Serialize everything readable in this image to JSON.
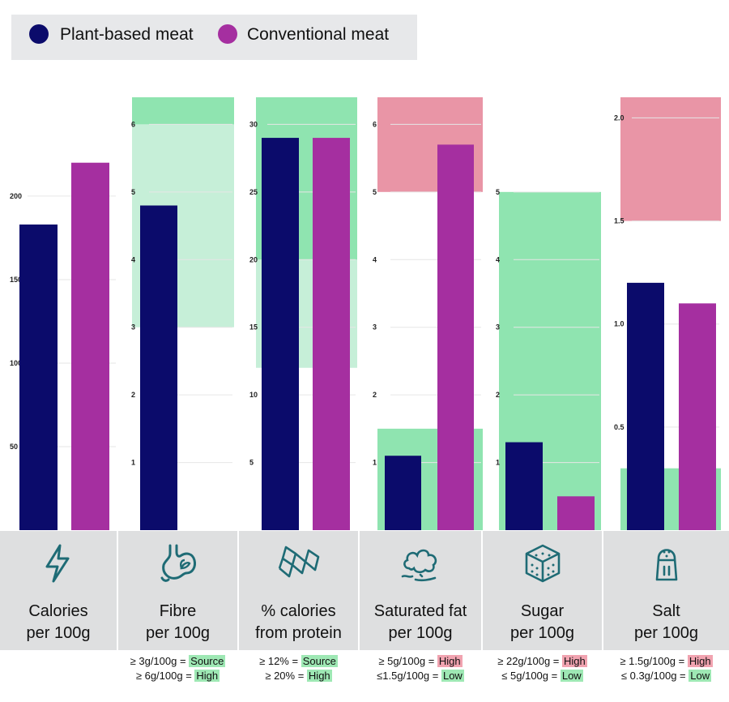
{
  "legend": {
    "plant_label": "Plant-based meat",
    "conventional_label": "Conventional meat"
  },
  "colors": {
    "plant": "#0b0b6b",
    "conventional": "#a52fa0",
    "high_band": "#e995a6",
    "low_band": "#8fe4b0",
    "source_band": "#c6efd8",
    "panel": "#dedfe0"
  },
  "categories": [
    {
      "line1": "Calories",
      "line2": "per 100g",
      "icon": "lightning-bolt-icon",
      "crit": []
    },
    {
      "line1": "Fibre",
      "line2": "per 100g",
      "icon": "stomach-icon",
      "crit": [
        {
          "pre": "≥ 3g/100g = ",
          "tag": "Source",
          "tone": "green"
        },
        {
          "pre": "≥ 6g/100g = ",
          "tag": "High",
          "tone": "green"
        }
      ]
    },
    {
      "line1": "% calories",
      "line2": "from protein",
      "icon": "protein-helix-icon",
      "crit": [
        {
          "pre": "≥ 12% = ",
          "tag": "Source",
          "tone": "green"
        },
        {
          "pre": "≥ 20% = ",
          "tag": "High",
          "tone": "green"
        }
      ]
    },
    {
      "line1": "Saturated fat",
      "line2": "per 100g",
      "icon": "fat-cloud-icon",
      "crit": [
        {
          "pre": "≥ 5g/100g = ",
          "tag": "High",
          "tone": "red"
        },
        {
          "pre": "≤1.5g/100g = ",
          "tag": "Low",
          "tone": "green"
        }
      ]
    },
    {
      "line1": "Sugar",
      "line2": "per 100g",
      "icon": "sugar-cube-icon",
      "crit": [
        {
          "pre": "≥ 22g/100g = ",
          "tag": "High",
          "tone": "red"
        },
        {
          "pre": "≤ 5g/100g = ",
          "tag": "Low",
          "tone": "green"
        }
      ]
    },
    {
      "line1": "Salt",
      "line2": "per 100g",
      "icon": "salt-shaker-icon",
      "crit": [
        {
          "pre": "≥ 1.5g/100g = ",
          "tag": "High",
          "tone": "red"
        },
        {
          "pre": "≤ 0.3g/100g = ",
          "tag": "Low",
          "tone": "green"
        }
      ]
    }
  ],
  "chart_data": [
    {
      "type": "bar",
      "title": "Calories per 100g",
      "categories": [
        "Calories per 100g"
      ],
      "series": [
        {
          "name": "Plant-based meat",
          "values": [
            183
          ]
        },
        {
          "name": "Conventional meat",
          "values": [
            220
          ]
        }
      ],
      "ylim": [
        0,
        265
      ],
      "yticks": [
        50,
        100,
        150,
        200
      ],
      "ytick_labels": [
        "50",
        "100",
        "150",
        "200"
      ],
      "bands": []
    },
    {
      "type": "bar",
      "title": "Fibre per 100g",
      "categories": [
        "Fibre per 100g"
      ],
      "series": [
        {
          "name": "Plant-based meat",
          "values": [
            4.8
          ]
        },
        {
          "name": "Conventional meat",
          "values": [
            0
          ]
        }
      ],
      "ylim": [
        0,
        6.4
      ],
      "yticks": [
        1,
        2,
        3,
        4,
        5,
        6
      ],
      "ytick_labels": [
        "1",
        "2",
        "3",
        "4",
        "5",
        "6"
      ],
      "bands": [
        {
          "from": 3,
          "to": 6,
          "kind": "source"
        },
        {
          "from": 6,
          "to": 6.4,
          "kind": "low"
        }
      ]
    },
    {
      "type": "bar",
      "title": "% calories from protein",
      "categories": [
        "% calories from protein"
      ],
      "series": [
        {
          "name": "Plant-based meat",
          "values": [
            29
          ]
        },
        {
          "name": "Conventional meat",
          "values": [
            29
          ]
        }
      ],
      "ylim": [
        0,
        32
      ],
      "yticks": [
        5,
        10,
        15,
        20,
        25,
        30
      ],
      "ytick_labels": [
        "5",
        "10",
        "15",
        "20",
        "25",
        "30"
      ],
      "bands": [
        {
          "from": 12,
          "to": 20,
          "kind": "source"
        },
        {
          "from": 20,
          "to": 32,
          "kind": "low"
        }
      ]
    },
    {
      "type": "bar",
      "title": "Saturated fat per 100g",
      "categories": [
        "Saturated fat per 100g"
      ],
      "series": [
        {
          "name": "Plant-based meat",
          "values": [
            1.1
          ]
        },
        {
          "name": "Conventional meat",
          "values": [
            5.7
          ]
        }
      ],
      "ylim": [
        0,
        6.4
      ],
      "yticks": [
        1,
        2,
        3,
        4,
        5,
        6
      ],
      "ytick_labels": [
        "1",
        "2",
        "3",
        "4",
        "5",
        "6"
      ],
      "bands": [
        {
          "from": 0,
          "to": 1.5,
          "kind": "low"
        },
        {
          "from": 5,
          "to": 6.4,
          "kind": "high"
        }
      ]
    },
    {
      "type": "bar",
      "title": "Sugar per 100g",
      "categories": [
        "Sugar per 100g"
      ],
      "series": [
        {
          "name": "Plant-based meat",
          "values": [
            1.3
          ]
        },
        {
          "name": "Conventional meat",
          "values": [
            0.5
          ]
        }
      ],
      "ylim": [
        0,
        6.4
      ],
      "yticks": [
        1,
        2,
        3,
        4,
        5
      ],
      "ytick_labels": [
        "1",
        "2",
        "3",
        "4",
        "5"
      ],
      "bands": [
        {
          "from": 0,
          "to": 5,
          "kind": "low"
        }
      ]
    },
    {
      "type": "bar",
      "title": "Salt per 100g",
      "categories": [
        "Salt per 100g"
      ],
      "series": [
        {
          "name": "Plant-based meat",
          "values": [
            1.2
          ]
        },
        {
          "name": "Conventional meat",
          "values": [
            1.1
          ]
        }
      ],
      "ylim": [
        0,
        2.1
      ],
      "yticks": [
        0.5,
        1.0,
        1.5,
        2.0
      ],
      "ytick_labels": [
        "0.5",
        "1.0",
        "1.5",
        "2.0"
      ],
      "bands": [
        {
          "from": 0,
          "to": 0.3,
          "kind": "low"
        },
        {
          "from": 1.5,
          "to": 2.1,
          "kind": "high"
        }
      ]
    }
  ]
}
